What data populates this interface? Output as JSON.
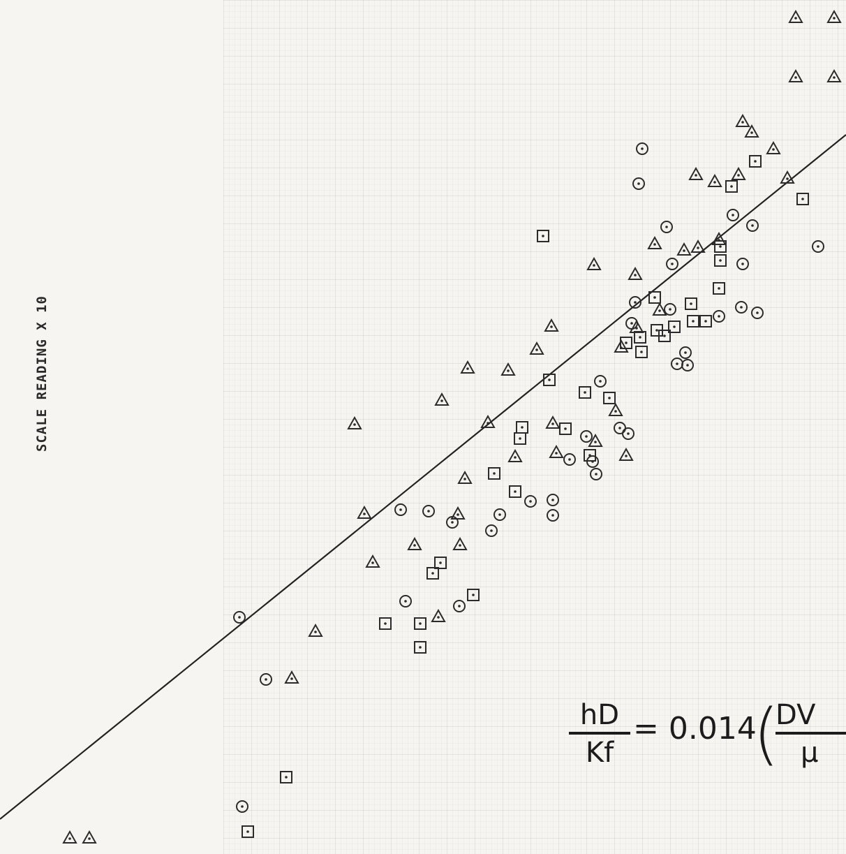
{
  "chart_data": {
    "type": "scatter",
    "title": "",
    "xlabel": "",
    "ylabel": "SCALE READING X 10",
    "grid": true,
    "fit_line": {
      "x": [
        0,
        1212
      ],
      "y": [
        0,
        1000
      ]
    },
    "annotation": {
      "equation_num": "hD",
      "equation_den": "Kf",
      "equation_rest": "= 0.014",
      "equation_num2": "DV",
      "equation_den2": "μ"
    },
    "series": [
      {
        "marker": "triangle",
        "points": [
          [
            1140,
            1198
          ],
          [
            1195,
            1198
          ],
          [
            1140,
            1113
          ],
          [
            1195,
            1113
          ],
          [
            1077,
            1034
          ],
          [
            1108,
            1010
          ],
          [
            1128,
            968
          ],
          [
            1024,
            963
          ],
          [
            997,
            973
          ],
          [
            1058,
            973
          ],
          [
            1030,
            880
          ],
          [
            1000,
            869
          ],
          [
            910,
            830
          ],
          [
            938,
            874
          ],
          [
            851,
            844
          ],
          [
            790,
            756
          ],
          [
            769,
            723
          ],
          [
            728,
            693
          ],
          [
            670,
            696
          ],
          [
            633,
            650
          ],
          [
            508,
            616
          ],
          [
            699,
            618
          ],
          [
            792,
            617
          ],
          [
            797,
            575
          ],
          [
            853,
            591
          ],
          [
            897,
            571
          ],
          [
            882,
            635
          ],
          [
            738,
            569
          ],
          [
            666,
            538
          ],
          [
            522,
            488
          ],
          [
            656,
            487
          ],
          [
            594,
            443
          ],
          [
            659,
            443
          ],
          [
            534,
            418
          ],
          [
            628,
            340
          ],
          [
            452,
            319
          ],
          [
            418,
            252
          ],
          [
            100,
            23
          ],
          [
            128,
            23
          ],
          [
            1064,
            1049
          ],
          [
            980,
            865
          ],
          [
            945,
            779
          ],
          [
            912,
            754
          ],
          [
            890,
            726
          ]
        ]
      },
      {
        "marker": "square",
        "points": [
          [
            1082,
            992
          ],
          [
            1048,
            956
          ],
          [
            1150,
            938
          ],
          [
            778,
            885
          ],
          [
            1032,
            850
          ],
          [
            1030,
            810
          ],
          [
            990,
            788
          ],
          [
            938,
            797
          ],
          [
            993,
            763
          ],
          [
            1011,
            763
          ],
          [
            917,
            740
          ],
          [
            941,
            750
          ],
          [
            897,
            732
          ],
          [
            919,
            719
          ],
          [
            952,
            742
          ],
          [
            787,
            679
          ],
          [
            838,
            661
          ],
          [
            873,
            653
          ],
          [
            748,
            611
          ],
          [
            810,
            609
          ],
          [
            745,
            595
          ],
          [
            845,
            571
          ],
          [
            708,
            545
          ],
          [
            738,
            519
          ],
          [
            631,
            417
          ],
          [
            620,
            402
          ],
          [
            678,
            371
          ],
          [
            602,
            330
          ],
          [
            602,
            296
          ],
          [
            552,
            330
          ],
          [
            410,
            110
          ],
          [
            355,
            32
          ],
          [
            966,
            755
          ],
          [
            1032,
            870
          ]
        ]
      },
      {
        "marker": "circle",
        "points": [
          [
            920,
            1010
          ],
          [
            915,
            960
          ],
          [
            1050,
            915
          ],
          [
            1078,
            900
          ],
          [
            1172,
            870
          ],
          [
            955,
            898
          ],
          [
            963,
            845
          ],
          [
            1064,
            845
          ],
          [
            1062,
            783
          ],
          [
            1085,
            775
          ],
          [
            1030,
            770
          ],
          [
            910,
            790
          ],
          [
            905,
            760
          ],
          [
            960,
            780
          ],
          [
            982,
            718
          ],
          [
            985,
            700
          ],
          [
            970,
            702
          ],
          [
            860,
            677
          ],
          [
            888,
            610
          ],
          [
            900,
            602
          ],
          [
            840,
            598
          ],
          [
            816,
            565
          ],
          [
            849,
            562
          ],
          [
            854,
            544
          ],
          [
            792,
            507
          ],
          [
            792,
            485
          ],
          [
            760,
            505
          ],
          [
            704,
            463
          ],
          [
            716,
            486
          ],
          [
            614,
            491
          ],
          [
            648,
            475
          ],
          [
            574,
            493
          ],
          [
            658,
            355
          ],
          [
            581,
            362
          ],
          [
            381,
            250
          ],
          [
            347,
            68
          ],
          [
            343,
            339
          ]
        ]
      }
    ]
  }
}
